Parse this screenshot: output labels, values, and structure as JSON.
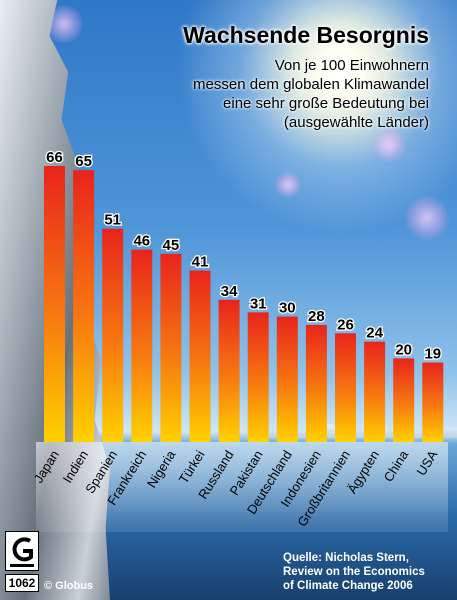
{
  "title": "Wachsende Besorgnis",
  "subtitle_lines": [
    "Von je 100 Einwohnern",
    "messen dem globalen Klimawandel",
    "eine sehr große Bedeutung bei",
    "(ausgewählte Länder)"
  ],
  "source_lines": [
    "Quelle: Nicholas Stern,",
    "Review on the Economics",
    "of Climate Change 2006"
  ],
  "logo_number": "1062",
  "credit": "© Globus",
  "colors": {
    "bar_top": "#e8241c",
    "bar_bottom": "#ffd100",
    "text": "#000000"
  },
  "chart_data": {
    "type": "bar",
    "title": "Wachsende Besorgnis",
    "categories": [
      "Japan",
      "Indien",
      "Spanien",
      "Frankreich",
      "Nigeria",
      "Türkei",
      "Russland",
      "Pakistan",
      "Deutschland",
      "Indonesien",
      "Großbritannien",
      "Ägypten",
      "China",
      "USA"
    ],
    "values": [
      66,
      65,
      51,
      46,
      45,
      41,
      34,
      31,
      30,
      28,
      26,
      24,
      20,
      19
    ],
    "ylim": [
      0,
      66
    ],
    "grid": false,
    "legend": "none"
  }
}
